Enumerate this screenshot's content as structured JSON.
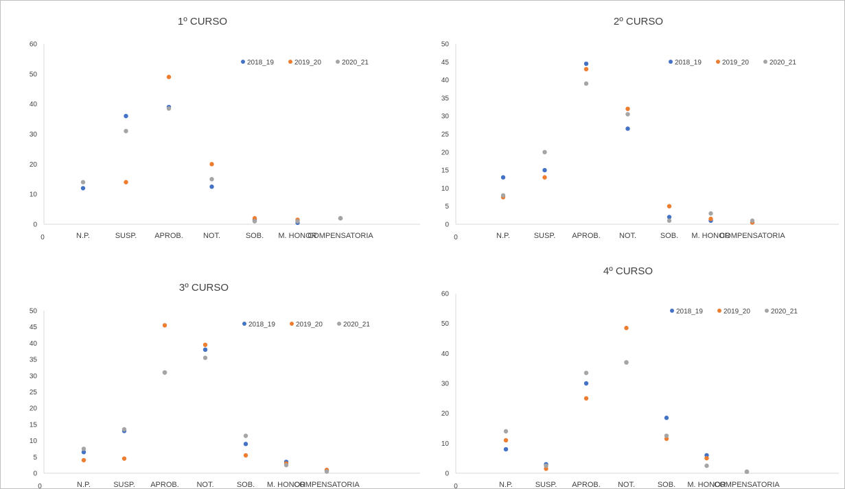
{
  "chart_data": [
    {
      "type": "scatter",
      "title": "1º CURSO",
      "categories": [
        "N.P.",
        "SUSP.",
        "APROB.",
        "NOT.",
        "SOB.",
        "M. HONOR",
        "COMPENSATORIA"
      ],
      "x_origin_label": "0",
      "ylim": [
        0,
        60
      ],
      "yticks": [
        0,
        10,
        20,
        30,
        40,
        50,
        60
      ],
      "grid": false,
      "legend": "top-right",
      "series": [
        {
          "name": "2018_19",
          "color": "#4472C4",
          "values": [
            12,
            36,
            39,
            12.5,
            1.5,
            0.5,
            2
          ]
        },
        {
          "name": "2019_20",
          "color": "#ED7D31",
          "values": [
            null,
            14,
            49,
            20,
            2,
            1.5,
            2
          ]
        },
        {
          "name": "2020_21",
          "color": "#A5A5A5",
          "values": [
            14,
            31,
            38.5,
            15,
            1,
            1,
            2
          ]
        }
      ]
    },
    {
      "type": "scatter",
      "title": "2º CURSO",
      "categories": [
        "N.P.",
        "SUSP.",
        "APROB.",
        "NOT.",
        "SOB.",
        "M. HONOR",
        "COMPENSATORIA"
      ],
      "x_origin_label": "0",
      "ylim": [
        0,
        50
      ],
      "yticks": [
        0,
        5,
        10,
        15,
        20,
        25,
        30,
        35,
        40,
        45,
        50
      ],
      "grid": false,
      "legend": "top-right",
      "series": [
        {
          "name": "2018_19",
          "color": "#4472C4",
          "values": [
            13,
            15,
            44.5,
            26.5,
            2,
            1,
            0.5
          ]
        },
        {
          "name": "2019_20",
          "color": "#ED7D31",
          "values": [
            7.5,
            13,
            43,
            32,
            5,
            1.5,
            0.5
          ]
        },
        {
          "name": "2020_21",
          "color": "#A5A5A5",
          "values": [
            8,
            20,
            39,
            30.5,
            1,
            3,
            1
          ]
        }
      ]
    },
    {
      "type": "scatter",
      "title": "3º CURSO",
      "categories": [
        "N.P.",
        "SUSP.",
        "APROB.",
        "NOT.",
        "SOB.",
        "M. HONOR",
        "COMPENSATORIA"
      ],
      "x_origin_label": "0",
      "ylim": [
        0,
        50
      ],
      "yticks": [
        0,
        5,
        10,
        15,
        20,
        25,
        30,
        35,
        40,
        45,
        50
      ],
      "grid": false,
      "legend": "top-right",
      "series": [
        {
          "name": "2018_19",
          "color": "#4472C4",
          "values": [
            6.5,
            13,
            31,
            38,
            9,
            3.5,
            1
          ]
        },
        {
          "name": "2019_20",
          "color": "#ED7D31",
          "values": [
            4,
            4.5,
            45.5,
            39.5,
            5.5,
            3,
            1
          ]
        },
        {
          "name": "2020_21",
          "color": "#A5A5A5",
          "values": [
            7.5,
            13.5,
            31,
            35.5,
            11.5,
            2.5,
            0.5
          ]
        }
      ]
    },
    {
      "type": "scatter",
      "title": "4º CURSO",
      "categories": [
        "N.P.",
        "SUSP.",
        "APROB.",
        "NOT.",
        "SOB.",
        "M. HONOR",
        "COMPENSATORIA"
      ],
      "x_origin_label": "0",
      "ylim": [
        0,
        60
      ],
      "yticks": [
        0,
        10,
        20,
        30,
        40,
        50,
        60
      ],
      "grid": false,
      "legend": "top-right",
      "series": [
        {
          "name": "2018_19",
          "color": "#4472C4",
          "values": [
            8,
            3,
            30,
            37,
            18.5,
            6,
            0.5
          ]
        },
        {
          "name": "2019_20",
          "color": "#ED7D31",
          "values": [
            11,
            1.5,
            25,
            48.5,
            11.5,
            5,
            0.5
          ]
        },
        {
          "name": "2020_21",
          "color": "#A5A5A5",
          "values": [
            14,
            2.5,
            33.5,
            37,
            12.5,
            2.5,
            0.5
          ]
        }
      ]
    }
  ]
}
